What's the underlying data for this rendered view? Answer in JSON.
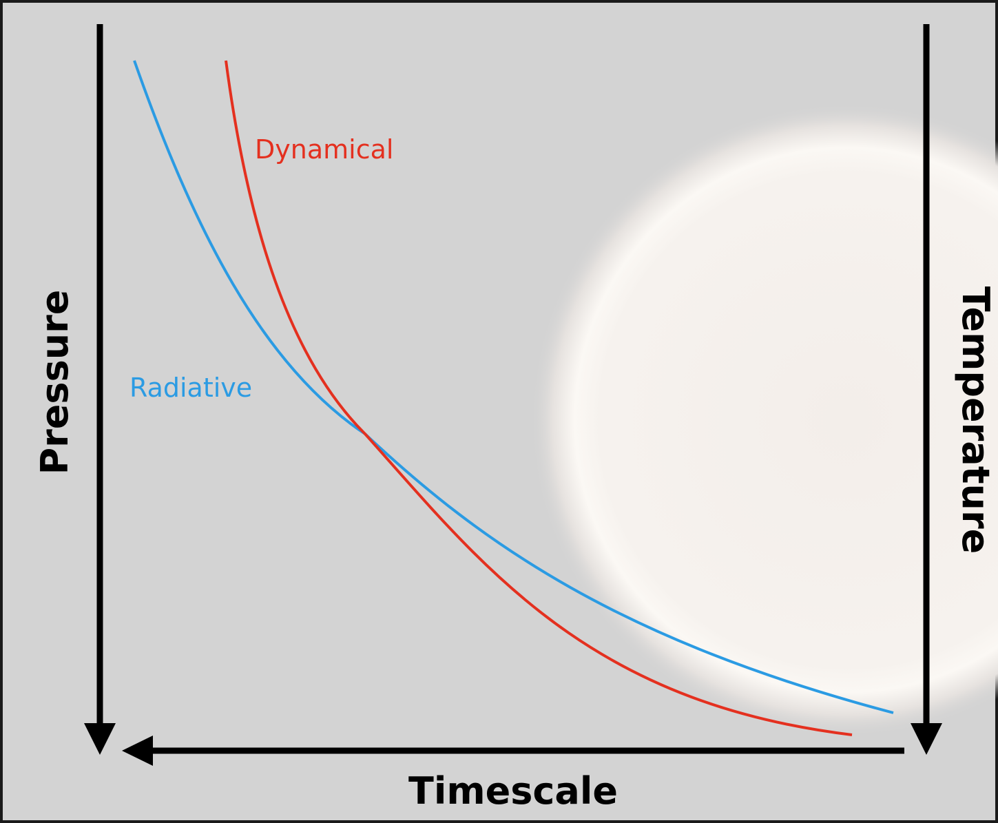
{
  "axes": {
    "left": "Pressure",
    "right": "Temperature",
    "bottom": "Timescale"
  },
  "curves": [
    {
      "label": "Dynamical"
    },
    {
      "label": "Radiative"
    }
  ]
}
